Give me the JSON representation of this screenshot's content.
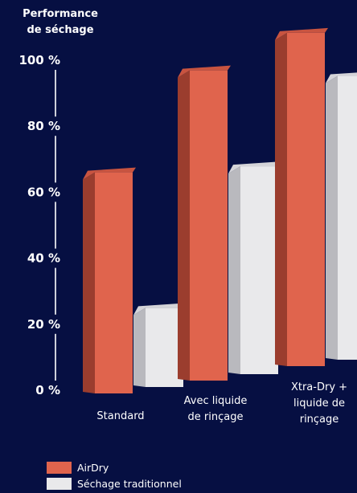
{
  "chart_data": {
    "type": "bar",
    "ylabel_lines": [
      "Performance",
      "de séchage"
    ],
    "categories": [
      [
        "Standard"
      ],
      [
        "Avec liquide",
        "de rinçage"
      ],
      [
        "Xtra-Dry +",
        "liquide de",
        "rinçage"
      ]
    ],
    "series": [
      {
        "name": "AirDry",
        "values": [
          67,
          94,
          101
        ],
        "color": "#e0644d",
        "side_color": "#9b3d2e",
        "top_color": "#c85440"
      },
      {
        "name": "Séchage traditionnel",
        "values": [
          24,
          63,
          86
        ],
        "color": "#e9e9eb",
        "side_color": "#b9b9be",
        "top_color": "#d4d4d8"
      }
    ],
    "yticks": [
      "0 %",
      "20 %",
      "40 %",
      "60 %",
      "80 %",
      "100 %"
    ],
    "ytick_values": [
      0,
      20,
      40,
      60,
      80,
      100
    ],
    "ylim": [
      0,
      100
    ],
    "grid": false,
    "legend_position": "bottom-left"
  },
  "colors": {
    "background": "#060f42",
    "axis": "#ffffff",
    "text": "#ffffff"
  }
}
